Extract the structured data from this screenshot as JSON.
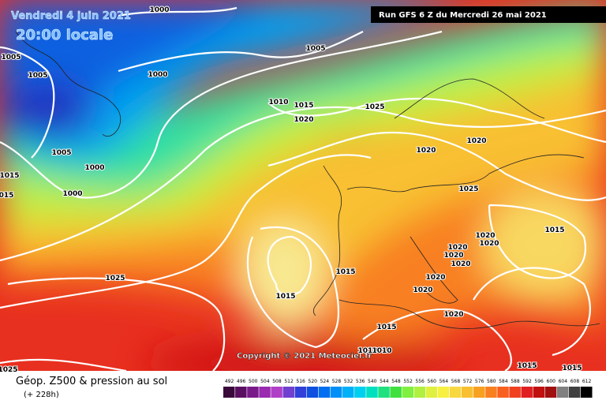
{
  "header": {
    "date": "Vendredi 4 juin 2021",
    "time": "20:00 locale",
    "run": "Run GFS 6 Z du Mercredi 26 mai 2021"
  },
  "copyright": "Copyright © 2021 Meteociel.fr",
  "footer": {
    "title": "Géop. Z500 & pression au sol",
    "subtitle": "(+ 228h)"
  },
  "isobar_labels": [
    "1000",
    "1005",
    "1000",
    "1005",
    "1005",
    "1010",
    "1015",
    "1025",
    "1020",
    "1020",
    "1020",
    "1005",
    "1000",
    "1015",
    "015",
    "1000",
    "1025",
    "1015",
    "1020",
    "1020",
    "1020",
    "1020",
    "1020",
    "1025",
    "1015",
    "1020",
    "1015",
    "1020",
    "1020",
    "1015",
    "1015",
    "1010",
    "1010",
    "1025",
    "1015"
  ],
  "legend": {
    "ticks": [
      492,
      496,
      500,
      504,
      508,
      512,
      516,
      520,
      524,
      528,
      532,
      536,
      540,
      544,
      548,
      552,
      556,
      560,
      564,
      568,
      572,
      576,
      580,
      584,
      588,
      592,
      596,
      600,
      604,
      608,
      612
    ],
    "colors": [
      "#3a0a3a",
      "#5a1060",
      "#7a1a8a",
      "#9a2ab0",
      "#b040c8",
      "#7040d0",
      "#3040d8",
      "#1050e0",
      "#0070f0",
      "#0090f8",
      "#00b0f8",
      "#00d0f0",
      "#00e0c0",
      "#20e080",
      "#40e040",
      "#80f040",
      "#b0f040",
      "#e0f040",
      "#f8f040",
      "#f8d840",
      "#f8c030",
      "#f8a020",
      "#f88020",
      "#f86020",
      "#f04020",
      "#e02020",
      "#c01010",
      "#a01010",
      "#808080",
      "#404040",
      "#000000"
    ]
  }
}
